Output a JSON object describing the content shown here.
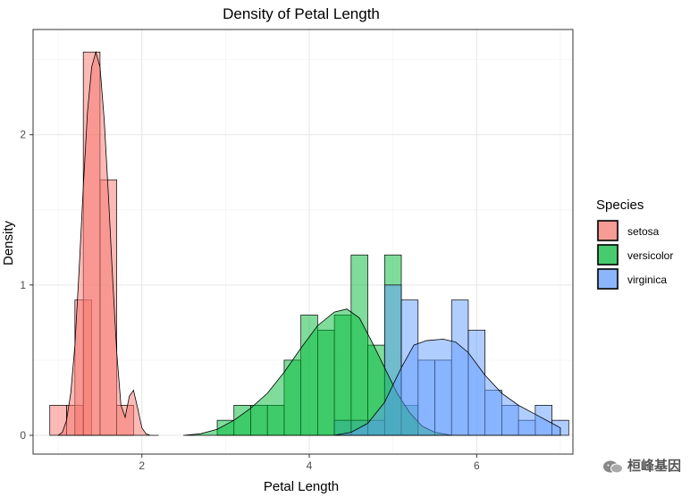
{
  "chart_data": {
    "type": "histogram-density",
    "title": "Density of Petal Length",
    "xlabel": "Petal Length",
    "ylabel": "Density",
    "xlim": [
      0.7,
      7.15
    ],
    "ylim": [
      -0.125,
      2.7
    ],
    "x_ticks": [
      2,
      4,
      6
    ],
    "y_ticks": [
      0,
      1,
      2
    ],
    "x_tick_labels": [
      "2",
      "4",
      "6"
    ],
    "y_tick_labels": [
      "0",
      "1",
      "2"
    ],
    "grid": true,
    "bin_width": 0.2,
    "legend": {
      "title": "Species",
      "position": "right"
    },
    "series": [
      {
        "name": "setosa",
        "color": "#F8766D",
        "bins": [
          {
            "x": 1.0,
            "density": 0.2
          },
          {
            "x": 1.2,
            "density": 0.2
          },
          {
            "x": 1.3,
            "density": 0.9
          },
          {
            "x": 1.4,
            "density": 2.55
          },
          {
            "x": 1.6,
            "density": 1.7
          },
          {
            "x": 1.8,
            "density": 0.2
          }
        ],
        "density_curve": [
          [
            1.0,
            0.0
          ],
          [
            1.05,
            0.02
          ],
          [
            1.1,
            0.1
          ],
          [
            1.15,
            0.28
          ],
          [
            1.2,
            0.6
          ],
          [
            1.25,
            1.1
          ],
          [
            1.3,
            1.65
          ],
          [
            1.35,
            2.15
          ],
          [
            1.4,
            2.45
          ],
          [
            1.45,
            2.55
          ],
          [
            1.5,
            2.45
          ],
          [
            1.55,
            2.1
          ],
          [
            1.6,
            1.6
          ],
          [
            1.65,
            1.05
          ],
          [
            1.7,
            0.55
          ],
          [
            1.75,
            0.2
          ],
          [
            1.8,
            0.12
          ],
          [
            1.85,
            0.26
          ],
          [
            1.9,
            0.3
          ],
          [
            1.95,
            0.18
          ],
          [
            2.0,
            0.05
          ],
          [
            2.05,
            0.01
          ],
          [
            2.1,
            0.0
          ],
          [
            2.2,
            0.0
          ]
        ]
      },
      {
        "name": "versicolor",
        "color": "#00BA38",
        "bins": [
          {
            "x": 3.0,
            "density": 0.1
          },
          {
            "x": 3.2,
            "density": 0.2
          },
          {
            "x": 3.4,
            "density": 0.2
          },
          {
            "x": 3.6,
            "density": 0.2
          },
          {
            "x": 3.8,
            "density": 0.5
          },
          {
            "x": 4.0,
            "density": 0.8
          },
          {
            "x": 4.2,
            "density": 0.7
          },
          {
            "x": 4.4,
            "density": 0.8
          },
          {
            "x": 4.6,
            "density": 1.2
          },
          {
            "x": 4.8,
            "density": 0.6
          },
          {
            "x": 5.0,
            "density": 1.2
          },
          {
            "x": 5.2,
            "density": 0.2
          }
        ],
        "density_curve": [
          [
            2.5,
            0.0
          ],
          [
            2.7,
            0.01
          ],
          [
            2.9,
            0.04
          ],
          [
            3.1,
            0.1
          ],
          [
            3.3,
            0.18
          ],
          [
            3.5,
            0.28
          ],
          [
            3.7,
            0.42
          ],
          [
            3.9,
            0.58
          ],
          [
            4.1,
            0.73
          ],
          [
            4.3,
            0.82
          ],
          [
            4.45,
            0.84
          ],
          [
            4.6,
            0.78
          ],
          [
            4.75,
            0.62
          ],
          [
            4.9,
            0.45
          ],
          [
            5.05,
            0.28
          ],
          [
            5.2,
            0.15
          ],
          [
            5.35,
            0.06
          ],
          [
            5.5,
            0.02
          ],
          [
            5.7,
            0.0
          ]
        ]
      },
      {
        "name": "virginica",
        "color": "#619CFF",
        "bins": [
          {
            "x": 4.4,
            "density": 0.1
          },
          {
            "x": 4.6,
            "density": 0.1
          },
          {
            "x": 4.8,
            "density": 0.1
          },
          {
            "x": 5.0,
            "density": 1.0
          },
          {
            "x": 5.2,
            "density": 0.9
          },
          {
            "x": 5.4,
            "density": 0.5
          },
          {
            "x": 5.6,
            "density": 0.5
          },
          {
            "x": 5.8,
            "density": 0.9
          },
          {
            "x": 6.0,
            "density": 0.7
          },
          {
            "x": 6.2,
            "density": 0.3
          },
          {
            "x": 6.4,
            "density": 0.2
          },
          {
            "x": 6.6,
            "density": 0.1
          },
          {
            "x": 6.8,
            "density": 0.2
          },
          {
            "x": 7.0,
            "density": 0.1
          }
        ],
        "density_curve": [
          [
            4.3,
            0.0
          ],
          [
            4.5,
            0.02
          ],
          [
            4.7,
            0.08
          ],
          [
            4.9,
            0.22
          ],
          [
            5.1,
            0.45
          ],
          [
            5.25,
            0.6
          ],
          [
            5.4,
            0.63
          ],
          [
            5.6,
            0.64
          ],
          [
            5.75,
            0.62
          ],
          [
            5.9,
            0.55
          ],
          [
            6.1,
            0.4
          ],
          [
            6.3,
            0.28
          ],
          [
            6.5,
            0.2
          ],
          [
            6.7,
            0.14
          ],
          [
            6.9,
            0.08
          ],
          [
            7.0,
            0.05
          ]
        ]
      }
    ]
  },
  "watermark": {
    "text": "桓峰基因",
    "icon": "wechat-icon"
  }
}
